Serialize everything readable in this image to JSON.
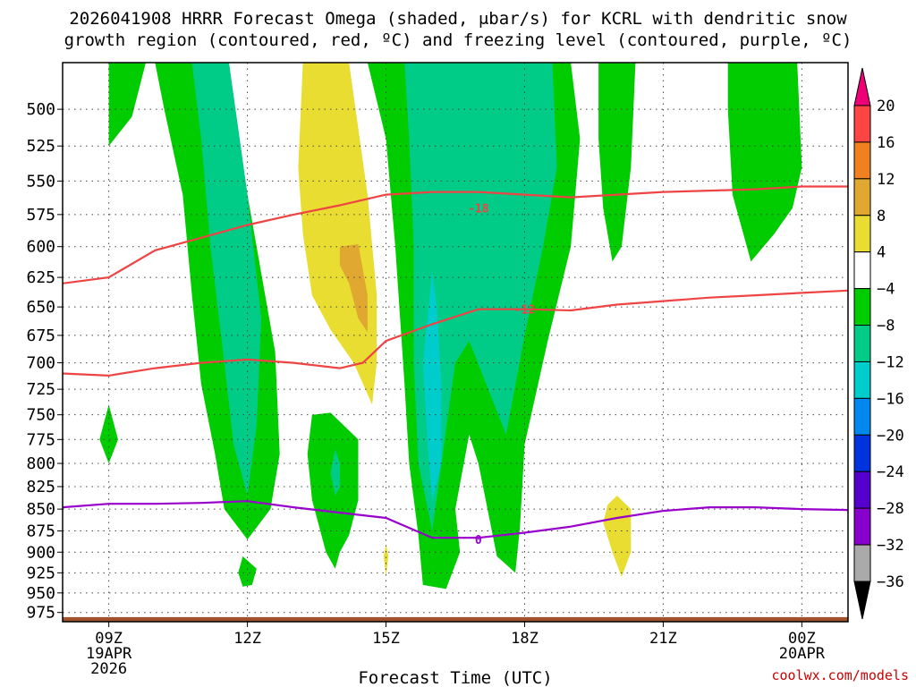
{
  "title_line1": "2026041908 HRRR Forecast Omega (shaded, μbar/s) for KCRL with dendritic snow",
  "title_line2": "growth region (contoured, red, ºC) and freezing level (contoured, purple, ºC)",
  "chart_data": {
    "type": "heatmap",
    "xlabel": "Forecast Time (UTC)",
    "ylabel": "",
    "x_range_hours": [
      8,
      25
    ],
    "y_range_hPa": [
      470,
      987
    ],
    "y_scale": "log-pressure, inverted",
    "grid": "dotted",
    "x_ticks": [
      {
        "hour": 9,
        "label": "09Z",
        "date": "19APR",
        "year": "2026"
      },
      {
        "hour": 12,
        "label": "12Z"
      },
      {
        "hour": 15,
        "label": "15Z"
      },
      {
        "hour": 18,
        "label": "18Z"
      },
      {
        "hour": 21,
        "label": "21Z"
      },
      {
        "hour": 24,
        "label": "00Z",
        "date": "20APR"
      }
    ],
    "y_ticks": [
      500,
      525,
      550,
      575,
      600,
      625,
      650,
      675,
      700,
      725,
      750,
      775,
      800,
      825,
      850,
      875,
      900,
      925,
      950,
      975
    ],
    "colorbar": {
      "labels": [
        "20",
        "16",
        "12",
        "8",
        "4",
        "−4",
        "−8",
        "−12",
        "−16",
        "−20",
        "−24",
        "−28",
        "−32",
        "−36"
      ],
      "colors": [
        "#ee0077",
        "#ff4444",
        "#f08020",
        "#e0a830",
        "#e8dd30",
        "#ffffff",
        "#00cc00",
        "#00cc88",
        "#00cccc",
        "#0088ee",
        "#0033dd",
        "#5500cc",
        "#8800cc",
        "#aaaaaa",
        "#000000"
      ]
    },
    "omega_regions": [
      {
        "level": "-4",
        "color": "#00cc00",
        "poly": [
          [
            9.0,
            470
          ],
          [
            9.8,
            470
          ],
          [
            9.5,
            505
          ],
          [
            9.0,
            525
          ]
        ]
      },
      {
        "level": "-4",
        "color": "#00cc00",
        "poly": [
          [
            10.0,
            470
          ],
          [
            11.6,
            470
          ],
          [
            12.0,
            560
          ],
          [
            12.6,
            690
          ],
          [
            12.7,
            790
          ],
          [
            12.5,
            850
          ],
          [
            12.0,
            885
          ],
          [
            11.5,
            850
          ],
          [
            11.3,
            790
          ],
          [
            11.0,
            720
          ],
          [
            10.8,
            640
          ],
          [
            10.6,
            560
          ],
          [
            10.2,
            500
          ]
        ]
      },
      {
        "level": "-8",
        "color": "#00cc88",
        "poly": [
          [
            10.8,
            470
          ],
          [
            11.6,
            470
          ],
          [
            12.0,
            560
          ],
          [
            12.3,
            660
          ],
          [
            12.2,
            760
          ],
          [
            12.0,
            835
          ],
          [
            11.7,
            780
          ],
          [
            11.5,
            700
          ],
          [
            11.2,
            600
          ],
          [
            11.0,
            520
          ]
        ]
      },
      {
        "level": "-4",
        "color": "#00cc00",
        "poly": [
          [
            14.6,
            470
          ],
          [
            19.0,
            470
          ],
          [
            19.2,
            520
          ],
          [
            19.0,
            600
          ],
          [
            18.5,
            680
          ],
          [
            18.0,
            780
          ],
          [
            17.9,
            870
          ],
          [
            17.8,
            925
          ],
          [
            17.4,
            905
          ],
          [
            17.0,
            800
          ],
          [
            16.8,
            770
          ],
          [
            16.5,
            850
          ],
          [
            16.6,
            900
          ],
          [
            16.3,
            945
          ],
          [
            15.8,
            940
          ],
          [
            15.7,
            880
          ],
          [
            15.5,
            800
          ],
          [
            15.4,
            720
          ],
          [
            15.2,
            600
          ],
          [
            15.0,
            520
          ]
        ]
      },
      {
        "level": "-8",
        "color": "#00cc88",
        "poly": [
          [
            15.4,
            470
          ],
          [
            18.6,
            470
          ],
          [
            18.7,
            540
          ],
          [
            18.4,
            600
          ],
          [
            18.0,
            675
          ],
          [
            17.6,
            770
          ],
          [
            16.8,
            680
          ],
          [
            16.5,
            700
          ],
          [
            16.2,
            800
          ],
          [
            16.0,
            875
          ],
          [
            15.7,
            800
          ],
          [
            15.6,
            700
          ],
          [
            15.6,
            600
          ],
          [
            15.5,
            520
          ]
        ]
      },
      {
        "level": "-12",
        "color": "#00cccc",
        "poly": [
          [
            16.0,
            620
          ],
          [
            16.1,
            650
          ],
          [
            16.2,
            720
          ],
          [
            16.2,
            800
          ],
          [
            16.0,
            840
          ],
          [
            15.9,
            780
          ],
          [
            15.8,
            700
          ]
        ]
      },
      {
        "level": "-4",
        "color": "#00cc00",
        "poly": [
          [
            19.6,
            470
          ],
          [
            20.4,
            470
          ],
          [
            20.3,
            540
          ],
          [
            20.1,
            600
          ],
          [
            19.9,
            612
          ],
          [
            19.7,
            570
          ],
          [
            19.6,
            520
          ]
        ]
      },
      {
        "level": "-4",
        "color": "#00cc00",
        "poly": [
          [
            22.4,
            470
          ],
          [
            23.9,
            470
          ],
          [
            24.0,
            540
          ],
          [
            23.8,
            570
          ],
          [
            23.4,
            590
          ],
          [
            22.9,
            612
          ],
          [
            22.5,
            560
          ],
          [
            22.4,
            500
          ]
        ]
      },
      {
        "level": "-4",
        "color": "#00cc00",
        "poly": [
          [
            13.4,
            750
          ],
          [
            13.8,
            748
          ],
          [
            14.4,
            775
          ],
          [
            14.4,
            840
          ],
          [
            14.2,
            880
          ],
          [
            14.0,
            900
          ],
          [
            13.9,
            920
          ],
          [
            13.7,
            900
          ],
          [
            13.4,
            840
          ],
          [
            13.3,
            790
          ]
        ]
      },
      {
        "level": "-8",
        "color": "#00cc88",
        "poly": [
          [
            13.9,
            785
          ],
          [
            14.0,
            800
          ],
          [
            14.0,
            825
          ],
          [
            13.9,
            835
          ],
          [
            13.8,
            810
          ]
        ]
      },
      {
        "level": "-4",
        "color": "#00cc00",
        "poly": [
          [
            9.0,
            740
          ],
          [
            9.2,
            775
          ],
          [
            9.0,
            800
          ],
          [
            8.8,
            775
          ]
        ]
      },
      {
        "level": "-4",
        "color": "#00cc00",
        "poly": [
          [
            11.9,
            905
          ],
          [
            12.2,
            920
          ],
          [
            12.1,
            940
          ],
          [
            11.9,
            942
          ],
          [
            11.8,
            925
          ]
        ]
      },
      {
        "level": "4",
        "color": "#e8dd30",
        "poly": [
          [
            13.2,
            470
          ],
          [
            14.2,
            470
          ],
          [
            14.6,
            560
          ],
          [
            14.8,
            640
          ],
          [
            14.8,
            700
          ],
          [
            14.7,
            740
          ],
          [
            14.3,
            700
          ],
          [
            13.8,
            670
          ],
          [
            13.4,
            640
          ],
          [
            13.2,
            590
          ],
          [
            13.1,
            540
          ]
        ]
      },
      {
        "level": "8",
        "color": "#e0a830",
        "poly": [
          [
            14.0,
            600
          ],
          [
            14.4,
            598
          ],
          [
            14.6,
            640
          ],
          [
            14.6,
            672
          ],
          [
            14.4,
            660
          ],
          [
            14.2,
            630
          ],
          [
            14.0,
            615
          ]
        ]
      },
      {
        "level": "4",
        "color": "#e8dd30",
        "poly": [
          [
            15.0,
            890
          ],
          [
            15.05,
            905
          ],
          [
            15.0,
            930
          ],
          [
            14.95,
            905
          ]
        ]
      },
      {
        "level": "4",
        "color": "#e8dd30",
        "poly": [
          [
            20.0,
            835
          ],
          [
            20.3,
            850
          ],
          [
            20.3,
            900
          ],
          [
            20.1,
            930
          ],
          [
            19.9,
            900
          ],
          [
            19.7,
            865
          ],
          [
            19.8,
            845
          ]
        ]
      }
    ],
    "isotherms": [
      {
        "label": "-18",
        "color": "#ee4444",
        "label_at": [
          17.0,
          570
        ],
        "points": [
          [
            8,
            630
          ],
          [
            9,
            625
          ],
          [
            10,
            603
          ],
          [
            11,
            593
          ],
          [
            12,
            583
          ],
          [
            13,
            575
          ],
          [
            14,
            568
          ],
          [
            15,
            560
          ],
          [
            16,
            558
          ],
          [
            17,
            558
          ],
          [
            18,
            560
          ],
          [
            19,
            562
          ],
          [
            20,
            560
          ],
          [
            21,
            558
          ],
          [
            22,
            557
          ],
          [
            23,
            556
          ],
          [
            24,
            554
          ],
          [
            25,
            554
          ]
        ]
      },
      {
        "label": "-12",
        "color": "#ee4444",
        "label_at": [
          18.0,
          652
        ],
        "points": [
          [
            8,
            710
          ],
          [
            9,
            712
          ],
          [
            10,
            705
          ],
          [
            11,
            700
          ],
          [
            12,
            697
          ],
          [
            13,
            700
          ],
          [
            14,
            705
          ],
          [
            14.5,
            700
          ],
          [
            15,
            680
          ],
          [
            16,
            665
          ],
          [
            17,
            652
          ],
          [
            18,
            652
          ],
          [
            19,
            653
          ],
          [
            20,
            648
          ],
          [
            21,
            645
          ],
          [
            22,
            642
          ],
          [
            23,
            640
          ],
          [
            24,
            638
          ],
          [
            25,
            636
          ]
        ]
      },
      {
        "label": "0",
        "color": "#9900cc",
        "label_at": [
          17.0,
          885
        ],
        "points": [
          [
            8,
            848
          ],
          [
            9,
            844
          ],
          [
            10,
            844
          ],
          [
            11,
            843
          ],
          [
            12,
            841
          ],
          [
            13,
            848
          ],
          [
            14,
            854
          ],
          [
            15,
            860
          ],
          [
            16,
            883
          ],
          [
            17,
            883
          ],
          [
            18,
            877
          ],
          [
            19,
            870
          ],
          [
            20,
            860
          ],
          [
            21,
            852
          ],
          [
            22,
            848
          ],
          [
            23,
            848
          ],
          [
            24,
            850
          ],
          [
            25,
            851
          ]
        ]
      }
    ],
    "ground": {
      "color": "#a0522d",
      "from_hPa": 981,
      "to_hPa": 987
    }
  },
  "credit": "coolwx.com/models",
  "credit_color": "#cc0000"
}
